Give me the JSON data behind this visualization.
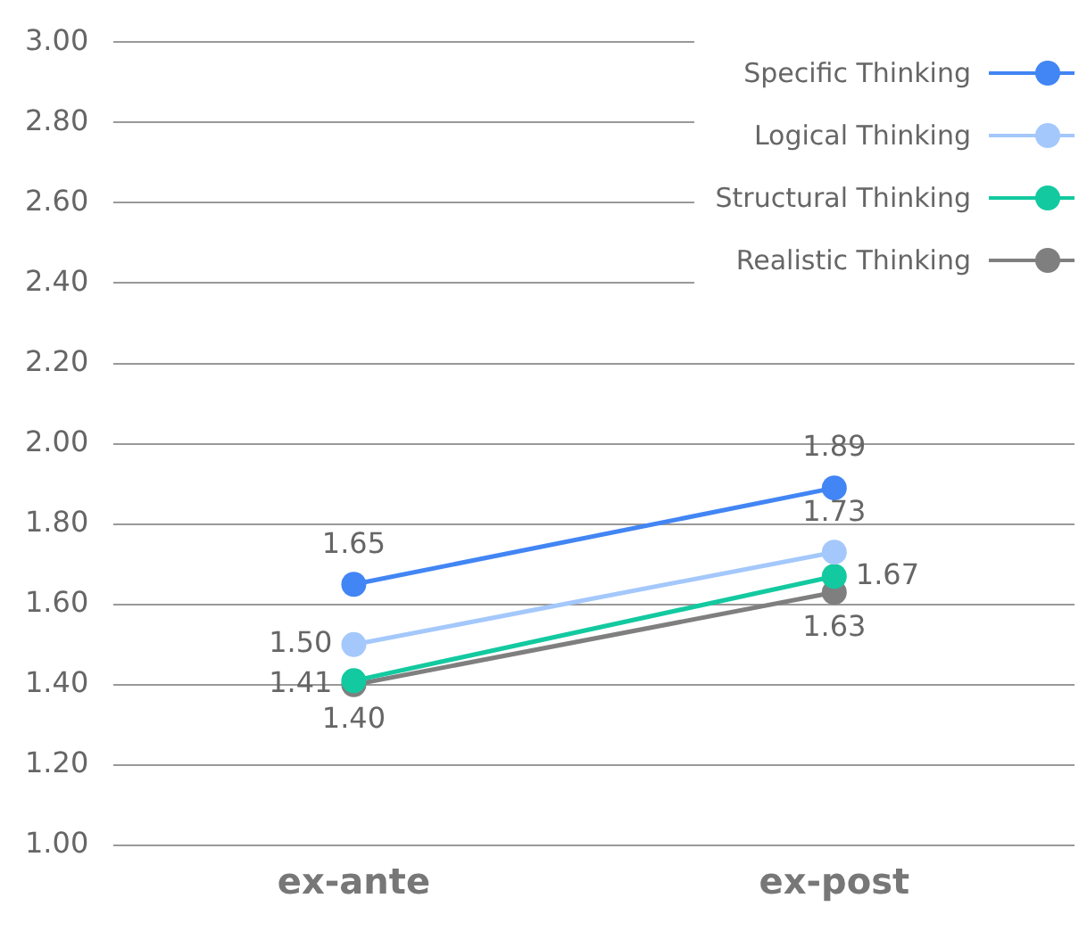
{
  "chart_data": {
    "type": "line",
    "categories": [
      "ex-ante",
      "ex-post"
    ],
    "series": [
      {
        "name": "Specific Thinking",
        "color": "#4285f4",
        "values": [
          1.65,
          1.89
        ],
        "value_labels": [
          "1.65",
          "1.89"
        ]
      },
      {
        "name": "Logical Thinking",
        "color": "#a4c8fb",
        "values": [
          1.5,
          1.73
        ],
        "value_labels": [
          "1.50",
          "1.73"
        ]
      },
      {
        "name": "Structural Thinking",
        "color": "#13c9a0",
        "values": [
          1.41,
          1.67
        ],
        "value_labels": [
          "1.41",
          "1.67"
        ]
      },
      {
        "name": "Realistic Thinking",
        "color": "#7f7f7f",
        "values": [
          1.4,
          1.63
        ],
        "value_labels": [
          "1.40",
          "1.63"
        ]
      }
    ],
    "ylim": [
      1,
      3
    ],
    "yticks": [
      {
        "value": 1,
        "label": "1.00"
      },
      {
        "value": 1.2,
        "label": "1.20"
      },
      {
        "value": 1.4,
        "label": "1.40"
      },
      {
        "value": 1.6,
        "label": "1.60"
      },
      {
        "value": 1.8,
        "label": "1.80"
      },
      {
        "value": 2,
        "label": "2.00"
      },
      {
        "value": 2.2,
        "label": "2.20"
      },
      {
        "value": 2.4,
        "label": "2.40"
      },
      {
        "value": 2.6,
        "label": "2.60"
      },
      {
        "value": 2.8,
        "label": "2.80"
      },
      {
        "value": 3,
        "label": "3.00"
      }
    ],
    "grid": "y",
    "legend": "top right",
    "marker": "circle",
    "line_style": "solid"
  }
}
